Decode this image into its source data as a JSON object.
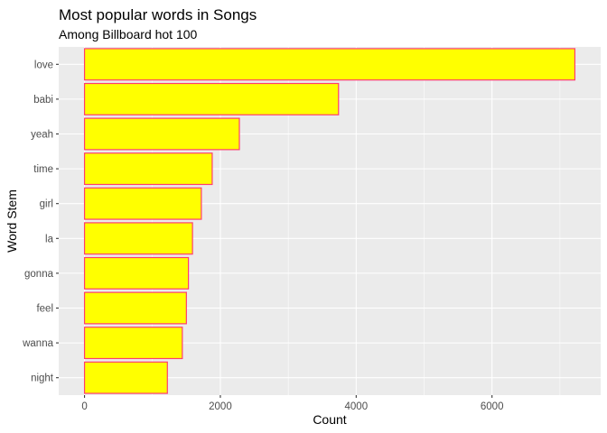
{
  "chart_data": {
    "type": "bar",
    "orientation": "horizontal",
    "title": "Most popular words in Songs",
    "subtitle": "Among Billboard hot 100",
    "xlabel": "Count",
    "ylabel": "Word Stem",
    "categories": [
      "love",
      "babi",
      "yeah",
      "time",
      "girl",
      "la",
      "gonna",
      "feel",
      "wanna",
      "night"
    ],
    "values": [
      7220,
      3740,
      2280,
      1880,
      1720,
      1590,
      1530,
      1500,
      1440,
      1220
    ],
    "xlim": [
      -380,
      7600
    ],
    "x_ticks": [
      0,
      2000,
      4000,
      6000
    ],
    "x_tick_labels": [
      "0",
      "2000",
      "4000",
      "6000"
    ],
    "grid": true,
    "colors": {
      "bar_fill": "#ffff00",
      "bar_stroke": "#ff3d6e",
      "panel_background": "#ebebeb",
      "gridline": "#ffffff",
      "text": "#000000",
      "tick_text": "#4d4d4d"
    }
  }
}
